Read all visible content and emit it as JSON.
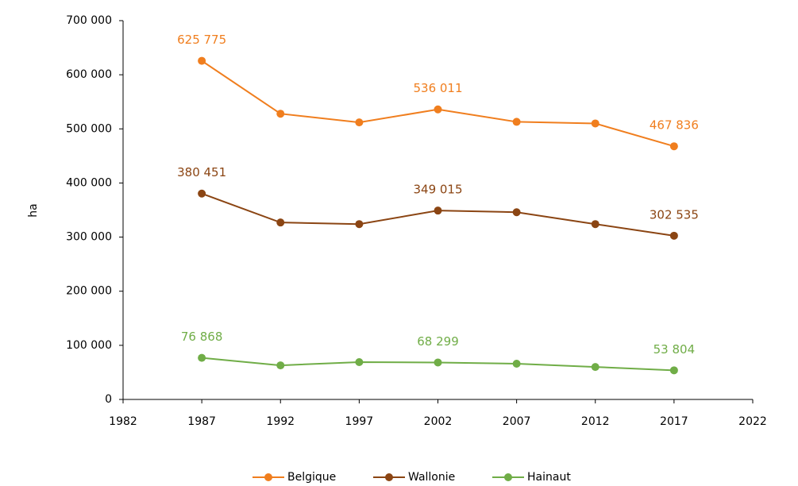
{
  "chart_data": {
    "type": "line",
    "y_label": "ha",
    "x": [
      1987,
      1992,
      1997,
      2002,
      2007,
      2012,
      2017
    ],
    "series": [
      {
        "name": "Belgique",
        "color": "#f07e1e",
        "values": [
          625775,
          528000,
          512000,
          536011,
          513000,
          510000,
          467836
        ],
        "value_labels": [
          "625 775",
          null,
          null,
          "536 011",
          null,
          null,
          "467 836"
        ]
      },
      {
        "name": "Wallonie",
        "color": "#8b4513",
        "values": [
          380451,
          327000,
          324000,
          349015,
          346000,
          324000,
          302535
        ],
        "value_labels": [
          "380 451",
          null,
          null,
          "349 015",
          null,
          null,
          "302 535"
        ]
      },
      {
        "name": "Hainaut",
        "color": "#70ad47",
        "values": [
          76868,
          63000,
          69000,
          68299,
          66000,
          60000,
          53804
        ],
        "value_labels": [
          "76 868",
          null,
          null,
          "68 299",
          null,
          null,
          "53 804"
        ]
      }
    ],
    "xlim": [
      1982,
      2022
    ],
    "xticks": [
      1982,
      1987,
      1992,
      1997,
      2002,
      2007,
      2012,
      2017,
      2022
    ],
    "ylim": [
      0,
      700000
    ],
    "yticks": [
      0,
      {
        "value": 100000,
        "label": "100 000"
      },
      {
        "value": 200000,
        "label": "200 000"
      },
      {
        "value": 300000,
        "label": "300 000"
      },
      {
        "value": 400000,
        "label": "400 000"
      },
      {
        "value": 500000,
        "label": "500 000"
      },
      {
        "value": 600000,
        "label": "600 000"
      },
      {
        "value": 700000,
        "label": "700 000"
      }
    ],
    "legend": "bottom"
  }
}
